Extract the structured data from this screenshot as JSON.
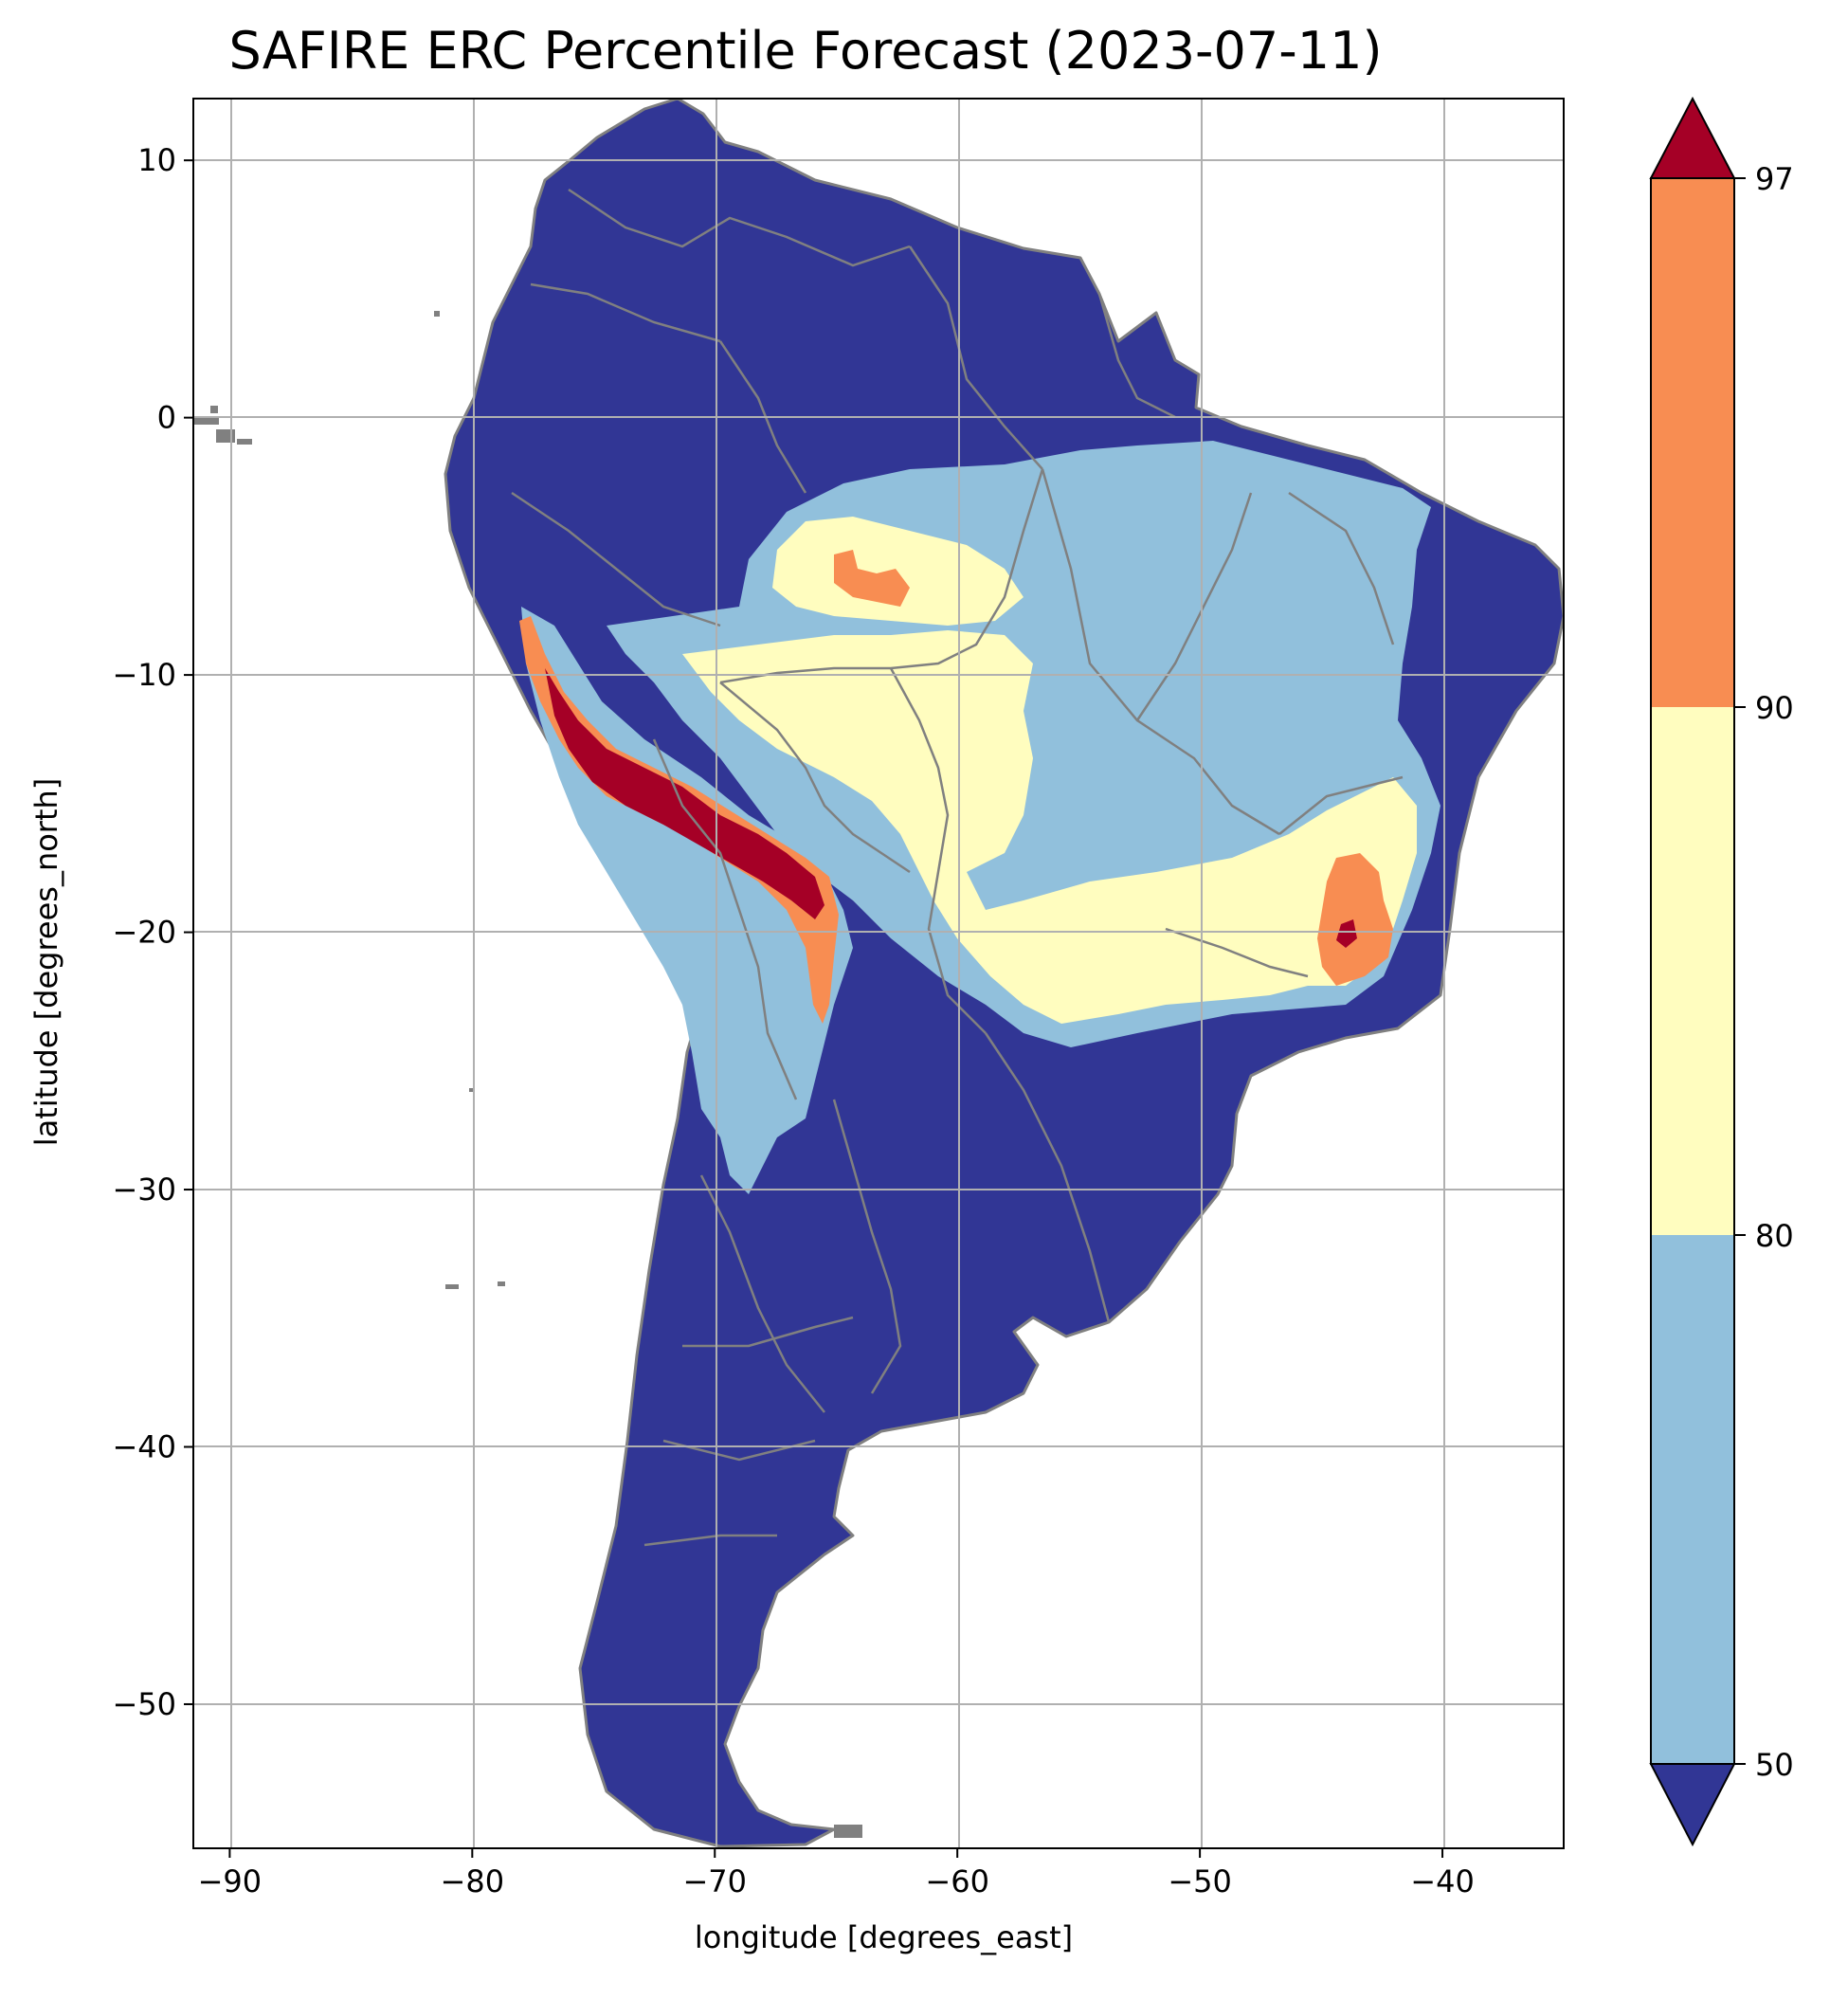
{
  "title": "SAFIRE ERC Percentile Forecast (2023-07-11)",
  "x_axis": {
    "label": "longitude [degrees_east]",
    "range": [
      -91.5,
      -35
    ],
    "ticks": [
      {
        "value": -90,
        "label": "−90"
      },
      {
        "value": -80,
        "label": "−80"
      },
      {
        "value": -70,
        "label": "−70"
      },
      {
        "value": -60,
        "label": "−60"
      },
      {
        "value": -50,
        "label": "−50"
      },
      {
        "value": -40,
        "label": "−40"
      }
    ]
  },
  "y_axis": {
    "label": "latitude [degrees_north]",
    "range": [
      -55.6,
      12.4
    ],
    "ticks": [
      {
        "value": 10,
        "label": "10"
      },
      {
        "value": 0,
        "label": "0"
      },
      {
        "value": -10,
        "label": "−10"
      },
      {
        "value": -20,
        "label": "−20"
      },
      {
        "value": -30,
        "label": "−30"
      },
      {
        "value": -40,
        "label": "−40"
      },
      {
        "value": -50,
        "label": "−50"
      }
    ]
  },
  "grid": true,
  "colorbar": {
    "placement": "right",
    "boundaries": [
      50,
      80,
      90,
      97
    ],
    "tick_labels": [
      "50",
      "80",
      "90",
      "97"
    ],
    "extend": "both",
    "colors": {
      "below_50": "#313695",
      "50_80": "#91c0dc",
      "80_90": "#fffdbf",
      "90_97": "#f88d52",
      "above_97": "#a50026"
    }
  },
  "map": {
    "region": "South America",
    "border_color": "#808080",
    "background_color": "#ffffff",
    "regions": [
      {
        "class": "50_80",
        "label": "Amazon basin / central Brazil"
      },
      {
        "class": "80_90",
        "label": "Para interior (north)"
      },
      {
        "class": "80_90",
        "label": "Central Brazil / Mato Grosso"
      },
      {
        "class": "90_97",
        "label": "Para hotspot"
      },
      {
        "class": "90_97",
        "label": "Minas Gerais hotspot"
      },
      {
        "class": "above_97",
        "label": "Minas Gerais core"
      },
      {
        "class": "50_80",
        "label": "Peruvian / Bolivian Andes"
      },
      {
        "class": "90_97",
        "label": "Central Andes ridge"
      },
      {
        "class": "above_97",
        "label": "Central Andes core"
      }
    ]
  }
}
